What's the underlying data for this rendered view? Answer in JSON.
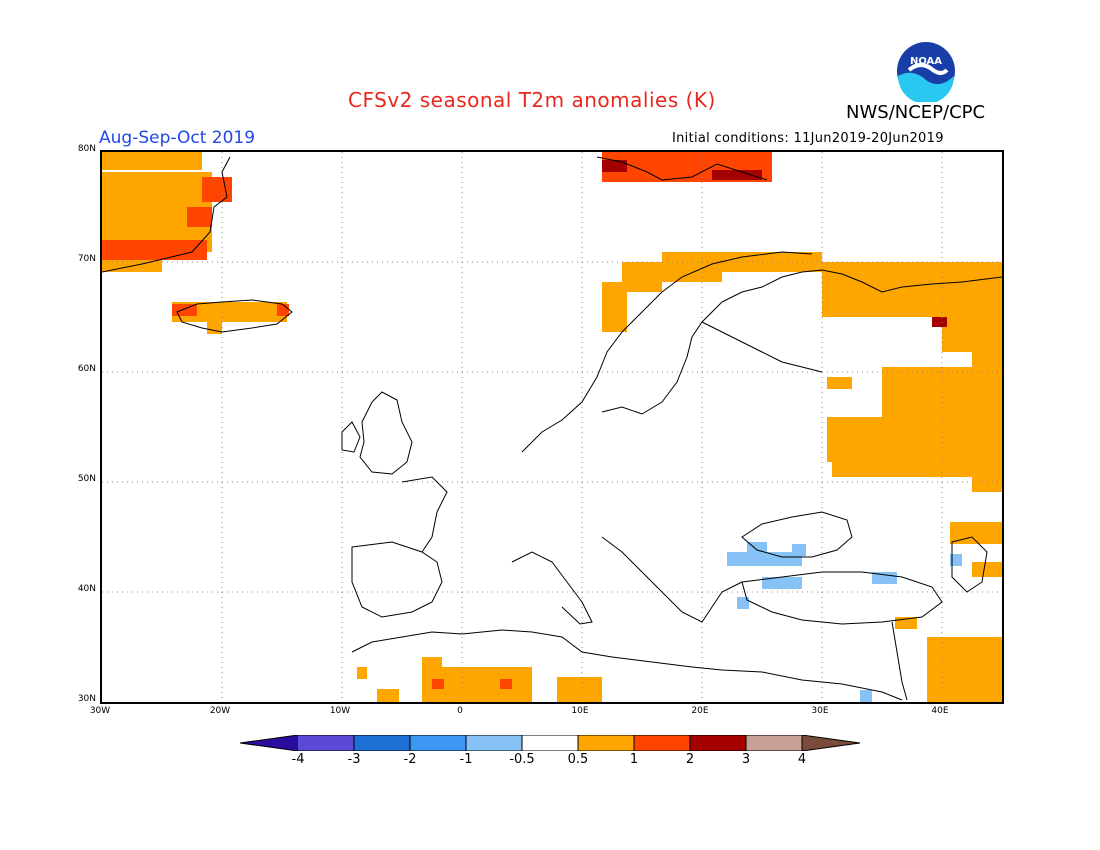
{
  "title": "CFSv2 seasonal T2m anomalies (K)",
  "agency": "NWS/NCEP/CPC",
  "logo_text": "NOAA",
  "season": "Aug-Sep-Oct 2019",
  "initial_conditions": "Initial conditions: 11Jun2019-20Jun2019",
  "axes": {
    "lat_labels": [
      "80N",
      "70N",
      "60N",
      "50N",
      "40N",
      "30N"
    ],
    "lon_labels": [
      "30W",
      "20W",
      "10W",
      "0",
      "10E",
      "20E",
      "30E",
      "40E"
    ],
    "lat_range": [
      30,
      80
    ],
    "lon_range": [
      -30,
      45
    ],
    "grid": "dotted"
  },
  "colorbar": {
    "labels": [
      "-4",
      "-3",
      "-2",
      "-1",
      "-0.5",
      "0.5",
      "1",
      "2",
      "3",
      "4"
    ],
    "colors": [
      "#2a0d9e",
      "#5a4ad6",
      "#1e6fd6",
      "#3c97f2",
      "#86c2f5",
      "#ffffff",
      "#ffa500",
      "#ff4500",
      "#a50000",
      "#c8a096",
      "#7a4a3a"
    ]
  },
  "anomaly_colors": {
    "warm1": "#ffa500",
    "warm2": "#ff4500",
    "warm3": "#a50000",
    "cool1": "#86c2f5"
  }
}
